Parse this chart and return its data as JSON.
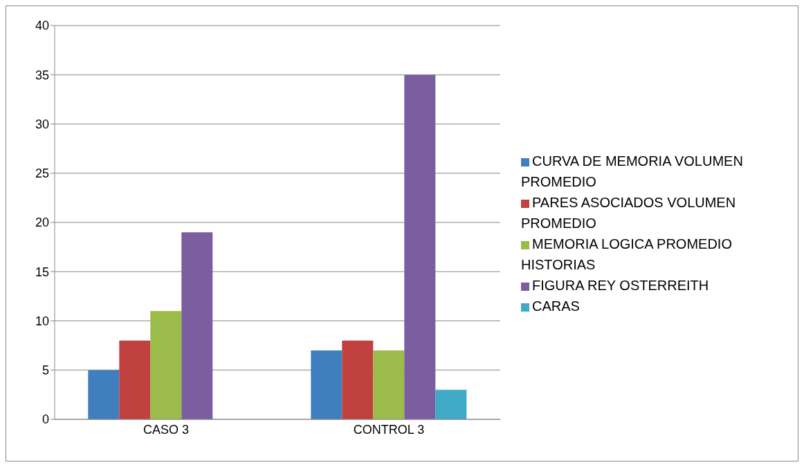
{
  "chart_data": {
    "type": "bar",
    "categories": [
      "CASO 3",
      "CONTROL 3"
    ],
    "series": [
      {
        "name": "CURVA DE MEMORIA VOLUMEN PROMEDIO",
        "color": "#3f7fc0",
        "values": [
          5,
          7
        ]
      },
      {
        "name": "PARES ASOCIADOS VOLUMEN PROMEDIO",
        "color": "#c0413f",
        "values": [
          8,
          8
        ]
      },
      {
        "name": "MEMORIA LOGICA PROMEDIO HISTORIAS",
        "color": "#9bbb4a",
        "values": [
          11,
          7
        ]
      },
      {
        "name": "FIGURA REY OSTERREITH",
        "color": "#7a5ea0",
        "values": [
          19,
          35
        ]
      },
      {
        "name": "CARAS",
        "color": "#3eaac6",
        "values": [
          null,
          3
        ]
      }
    ],
    "ylim": [
      0,
      40
    ],
    "yticks": [
      0,
      5,
      10,
      15,
      20,
      25,
      30,
      35,
      40
    ],
    "grid": "y",
    "legend": "right"
  }
}
